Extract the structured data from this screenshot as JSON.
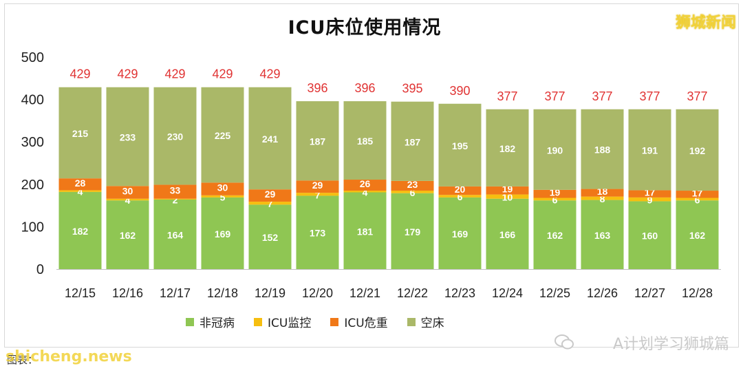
{
  "watermark_top": "狮城新闻",
  "source_label": "图表：",
  "watermark_bottom_left": "shicheng.news",
  "watermark_bottom_right": "A计划学习狮城篇",
  "colors": {
    "non_covid": "#8fc653",
    "icu_monitor": "#f6be10",
    "icu_critical": "#f07818",
    "empty_bed": "#aab868",
    "total_label": "#e03232"
  },
  "chart_data": {
    "type": "bar",
    "stacked": true,
    "title": "ICU床位使用情况",
    "xlabel": "",
    "ylabel": "",
    "ylim": [
      0,
      500
    ],
    "yticks": [
      0,
      100,
      200,
      300,
      400,
      500
    ],
    "grid": false,
    "legend_position": "bottom",
    "categories": [
      "12/15",
      "12/16",
      "12/17",
      "12/18",
      "12/19",
      "12/20",
      "12/21",
      "12/22",
      "12/23",
      "12/24",
      "12/25",
      "12/26",
      "12/27",
      "12/28"
    ],
    "series": [
      {
        "name": "非冠病",
        "values": [
          182,
          162,
          164,
          169,
          152,
          173,
          181,
          179,
          169,
          166,
          162,
          163,
          160,
          162
        ]
      },
      {
        "name": "ICU监控",
        "values": [
          4,
          4,
          2,
          5,
          7,
          7,
          4,
          6,
          6,
          10,
          6,
          8,
          9,
          6
        ]
      },
      {
        "name": "ICU危重",
        "values": [
          28,
          30,
          33,
          30,
          29,
          29,
          26,
          23,
          20,
          19,
          19,
          18,
          17,
          17
        ]
      },
      {
        "name": "空床",
        "values": [
          215,
          233,
          230,
          225,
          241,
          187,
          185,
          187,
          195,
          182,
          190,
          188,
          191,
          192
        ]
      }
    ],
    "totals": [
      429,
      429,
      429,
      429,
      429,
      396,
      396,
      395,
      390,
      377,
      377,
      377,
      377,
      377
    ]
  }
}
